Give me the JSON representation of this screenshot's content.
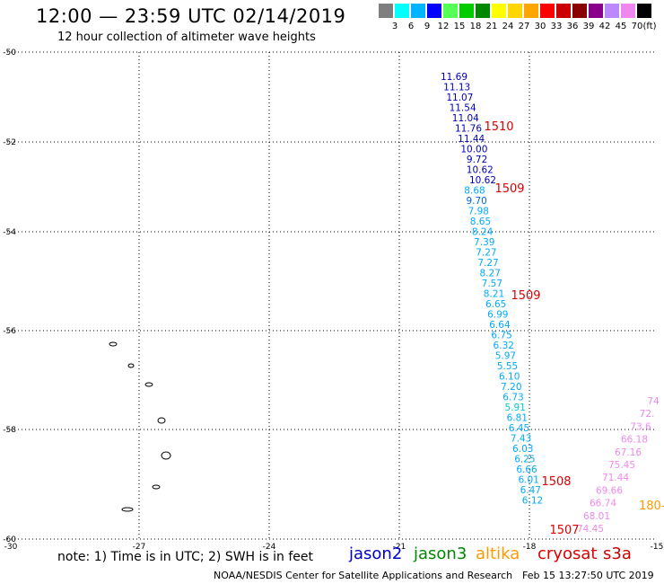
{
  "header": {
    "title": "12:00 — 23:59 UTC 02/14/2019",
    "subtitle": "12 hour collection of altimeter wave heights"
  },
  "color_scale": {
    "colors": [
      "#7f7f7f",
      "#00ffff",
      "#00b4ff",
      "#0000ff",
      "#55ff55",
      "#00cc00",
      "#008800",
      "#ffff00",
      "#ffd700",
      "#ffa500",
      "#ff0000",
      "#cc0000",
      "#880000",
      "#8b008b",
      "#bb88ff",
      "#ee88ee",
      "#000000"
    ],
    "labels": [
      "3",
      "6",
      "9",
      "12",
      "15",
      "18",
      "21",
      "24",
      "27",
      "30",
      "33",
      "36",
      "39",
      "42",
      "45",
      "70"
    ],
    "unit": "(ft)"
  },
  "axes": {
    "lat_labels": [
      "-50",
      "-52",
      "-54",
      "-56",
      "-58",
      "-60"
    ],
    "lon_labels": [
      "-30",
      "-27",
      "-24",
      "-21",
      "-18",
      "-15"
    ]
  },
  "tracks": {
    "jason2_values": [
      "11.69",
      "11.13",
      "11.07",
      "11.54",
      "11.04",
      "11.76",
      "11.44",
      "10.00",
      "9.72",
      "10.62",
      "10.62"
    ],
    "cyan_values": [
      "8.68",
      "9.70",
      "7.98",
      "8.65",
      "8.24",
      "7.39",
      "7.27",
      "7.27",
      "8.27",
      "7.57",
      "8.21",
      "6.65",
      "6.99",
      "6.64",
      "6.75",
      "6.32",
      "5.97",
      "5.55",
      "6.10",
      "7.20",
      "6.73",
      "5.91",
      "6.81",
      "6.45",
      "7.43",
      "6.03",
      "6.25",
      "6.66",
      "6.01",
      "6.47",
      "6.12"
    ],
    "cyan_colors": [
      "#00aaff",
      "#0066dd",
      "#00aaff",
      "#00aaff",
      "#00aaff",
      "#00aaff",
      "#00aaff",
      "#00aaff",
      "#00aaff",
      "#00aaff",
      "#00aaff",
      "#00aaff",
      "#00aaff",
      "#00aaff",
      "#00aaff",
      "#00aaff",
      "#00aaff",
      "#00aaff",
      "#00aaff",
      "#00aaff",
      "#00aaff",
      "#00cccc",
      "#00aaff",
      "#00aaff",
      "#00aaff",
      "#00aaff",
      "#00aaff",
      "#00aaff",
      "#00aaff",
      "#00aaff",
      "#00aaff"
    ],
    "s3a_values": [
      "74",
      "72.",
      "73.6",
      "66.18",
      "67.16",
      "75.45",
      "71.44",
      "69.66",
      "66.74",
      "68.01",
      "74.45"
    ],
    "time_labels": [
      "1510",
      "1509",
      "1509",
      "1508",
      "1507"
    ],
    "time_color": "#dd0000",
    "altika_label": "180-"
  },
  "legend": {
    "note": "note: 1) Time is in UTC; 2) SWH is in feet",
    "satellites": [
      {
        "name": "jason2",
        "color": "#0000cc"
      },
      {
        "name": "jason3",
        "color": "#008800"
      },
      {
        "name": "altika",
        "color": "#ff9900"
      },
      {
        "name": "cryosat",
        "color": "#dd0000"
      },
      {
        "name": "s3a",
        "color": "#cc0000"
      }
    ]
  },
  "footer": {
    "credit": "NOAA/NESDIS Center for Satellite Applications and Research",
    "timestamp": "Feb 15 13:27:50 UTC 2019"
  }
}
